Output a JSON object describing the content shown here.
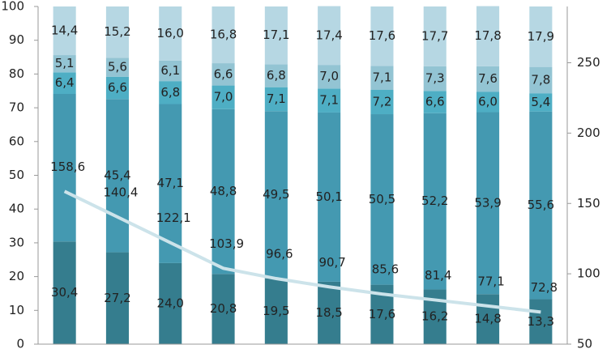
{
  "chart_data": {
    "type": "bar",
    "stacked": true,
    "categories": [
      null,
      null,
      null,
      null,
      null,
      null,
      null,
      null,
      null,
      null
    ],
    "series": [
      {
        "color": "#357d8e",
        "values": [
          30.4,
          27.2,
          24.0,
          20.8,
          19.5,
          18.5,
          17.6,
          16.2,
          14.8,
          13.3
        ],
        "value_labels": [
          "30,4",
          "27,2",
          "24,0",
          "20,8",
          "19,5",
          "18,5",
          "17,6",
          "16,2",
          "14,8",
          "13,3"
        ]
      },
      {
        "color": "#4499b1",
        "values": [
          43.7,
          45.4,
          47.1,
          48.8,
          49.5,
          50.1,
          50.5,
          52.2,
          53.9,
          55.6
        ],
        "value_labels": [
          null,
          "45,4",
          "47,1",
          "48,8",
          "49,5",
          "50,1",
          "50,5",
          "52,2",
          "53,9",
          "55,6"
        ]
      },
      {
        "color": "#4eaec4",
        "values": [
          6.4,
          6.6,
          6.8,
          7.0,
          7.1,
          7.1,
          7.2,
          6.6,
          6.0,
          5.4
        ],
        "value_labels": [
          "6,4",
          "6,6",
          "6,8",
          "7,0",
          "7,1",
          "7,1",
          "7,2",
          "6,6",
          "6,0",
          "5,4"
        ]
      },
      {
        "color": "#93c4d3",
        "values": [
          5.1,
          5.6,
          6.1,
          6.6,
          6.8,
          7.0,
          7.1,
          7.3,
          7.6,
          7.8
        ],
        "value_labels": [
          "5,1",
          "5,6",
          "6,1",
          "6,6",
          "6,8",
          "7,0",
          "7,1",
          "7,3",
          "7,6",
          "7,8"
        ]
      },
      {
        "color": "#b6d7e3",
        "values": [
          14.4,
          15.2,
          16.0,
          16.8,
          17.1,
          17.4,
          17.6,
          17.7,
          17.8,
          17.9
        ],
        "value_labels": [
          "14,4",
          "15,2",
          "16,0",
          "16,8",
          "17,1",
          "17,4",
          "17,6",
          "17,7",
          "17,8",
          "17,9"
        ]
      },
      {
        "type": "line",
        "axis": "y2",
        "color": "#cce3ea",
        "values": [
          158.6,
          140.4,
          122.1,
          103.9,
          96.6,
          90.7,
          85.6,
          81.4,
          77.1,
          72.8
        ],
        "value_labels": [
          "158,6",
          "140,4",
          "122,1",
          "103,9",
          "96,6",
          "90,7",
          "85,6",
          "81,4",
          "77,1",
          "72,8"
        ]
      }
    ],
    "ylim": [
      0,
      100
    ],
    "yticks": [
      0,
      10,
      20,
      30,
      40,
      50,
      60,
      70,
      80,
      90,
      100
    ],
    "y2lim": [
      50,
      290
    ],
    "y2ticks": [
      50,
      100,
      150,
      200,
      250
    ]
  }
}
